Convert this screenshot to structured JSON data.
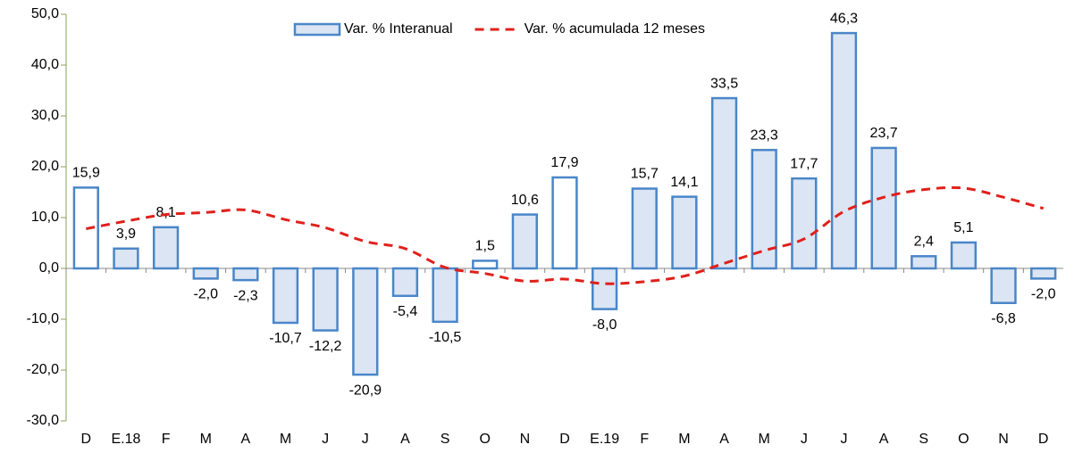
{
  "chart_data": {
    "type": "bar",
    "categories": [
      "D",
      "E.18",
      "F",
      "M",
      "A",
      "M",
      "J",
      "J",
      "A",
      "S",
      "O",
      "N",
      "D",
      "E.19",
      "F",
      "M",
      "A",
      "M",
      "J",
      "J",
      "A",
      "S",
      "O",
      "N",
      "D"
    ],
    "series": [
      {
        "name": "Var. % Interanual",
        "type": "bar",
        "color": "#4a86c8",
        "fill": "#dbe5f3",
        "point_fills": [
          "#ffffff",
          "#dbe5f3",
          "#dbe5f3",
          "#dbe5f3",
          "#dbe5f3",
          "#dbe5f3",
          "#dbe5f3",
          "#dbe5f3",
          "#dbe5f3",
          "#dbe5f3",
          "#ffffff",
          "#dbe5f3",
          "#ffffff",
          "#dbe5f3",
          "#dbe5f3",
          "#dbe5f3",
          "#dbe5f3",
          "#dbe5f3",
          "#dbe5f3",
          "#dbe5f3",
          "#dbe5f3",
          "#dbe5f3",
          "#dbe5f3",
          "#dbe5f3",
          "#dbe5f3"
        ],
        "values": [
          15.9,
          3.9,
          8.1,
          -2.0,
          -2.3,
          -10.7,
          -12.2,
          -20.9,
          -5.4,
          -10.5,
          1.5,
          10.6,
          17.9,
          -8.0,
          15.7,
          14.1,
          33.5,
          23.3,
          17.7,
          46.3,
          23.7,
          2.4,
          5.1,
          -6.8,
          -2.0
        ],
        "value_labels": [
          "15,9",
          "3,9",
          "8,1",
          "-2,0",
          "-2,3",
          "-10,7",
          "-12,2",
          "-20,9",
          "-5,4",
          "-10,5",
          "1,5",
          "10,6",
          "17,9",
          "-8,0",
          "15,7",
          "14,1",
          "33,5",
          "23,3",
          "17,7",
          "46,3",
          "23,7",
          "2,4",
          "5,1",
          "-6,8",
          "-2,0"
        ]
      },
      {
        "name": "Var. % acumulada 12 meses",
        "type": "line",
        "color": "#e0201b",
        "dashed": true,
        "values": [
          7.8,
          9.3,
          10.6,
          11.0,
          11.5,
          9.6,
          8.0,
          5.3,
          3.9,
          0.2,
          -1.0,
          -2.5,
          -2.1,
          -3.0,
          -2.6,
          -1.5,
          1.0,
          3.5,
          5.8,
          11.2,
          14.0,
          15.5,
          15.8,
          14.0,
          11.8
        ]
      }
    ],
    "ylim": [
      -30,
      50
    ],
    "yticks": [
      {
        "value": -30,
        "label": "-30,0"
      },
      {
        "value": -20,
        "label": "-20,0"
      },
      {
        "value": -10,
        "label": "-10,0"
      },
      {
        "value": 0,
        "label": "0,0"
      },
      {
        "value": 10,
        "label": "10,0"
      },
      {
        "value": 20,
        "label": "20,0"
      },
      {
        "value": 30,
        "label": "30,0"
      },
      {
        "value": 40,
        "label": "40,0"
      },
      {
        "value": 50,
        "label": "50,0"
      }
    ],
    "grid": false,
    "legend": "top"
  }
}
